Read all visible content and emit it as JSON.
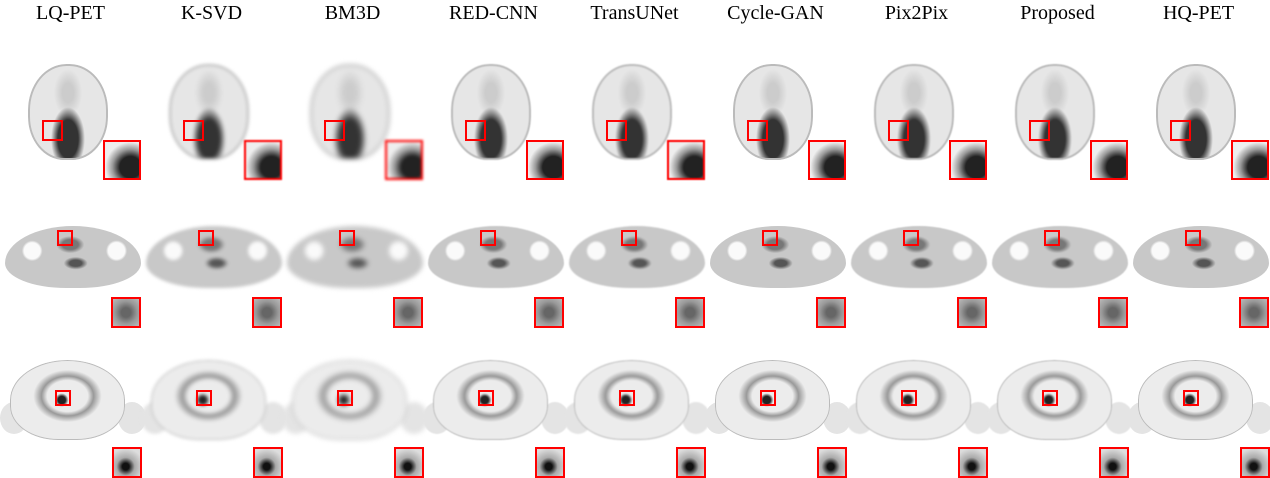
{
  "figure": {
    "columns": [
      {
        "label": "LQ-PET"
      },
      {
        "label": "K-SVD"
      },
      {
        "label": "BM3D"
      },
      {
        "label": "RED-CNN"
      },
      {
        "label": "TransUNet"
      },
      {
        "label": "Cycle-GAN"
      },
      {
        "label": "Pix2Pix"
      },
      {
        "label": "Proposed"
      },
      {
        "label": "HQ-PET"
      }
    ],
    "rows": [
      "head",
      "chest",
      "abdomen"
    ],
    "roi_color": "#ff0000"
  }
}
